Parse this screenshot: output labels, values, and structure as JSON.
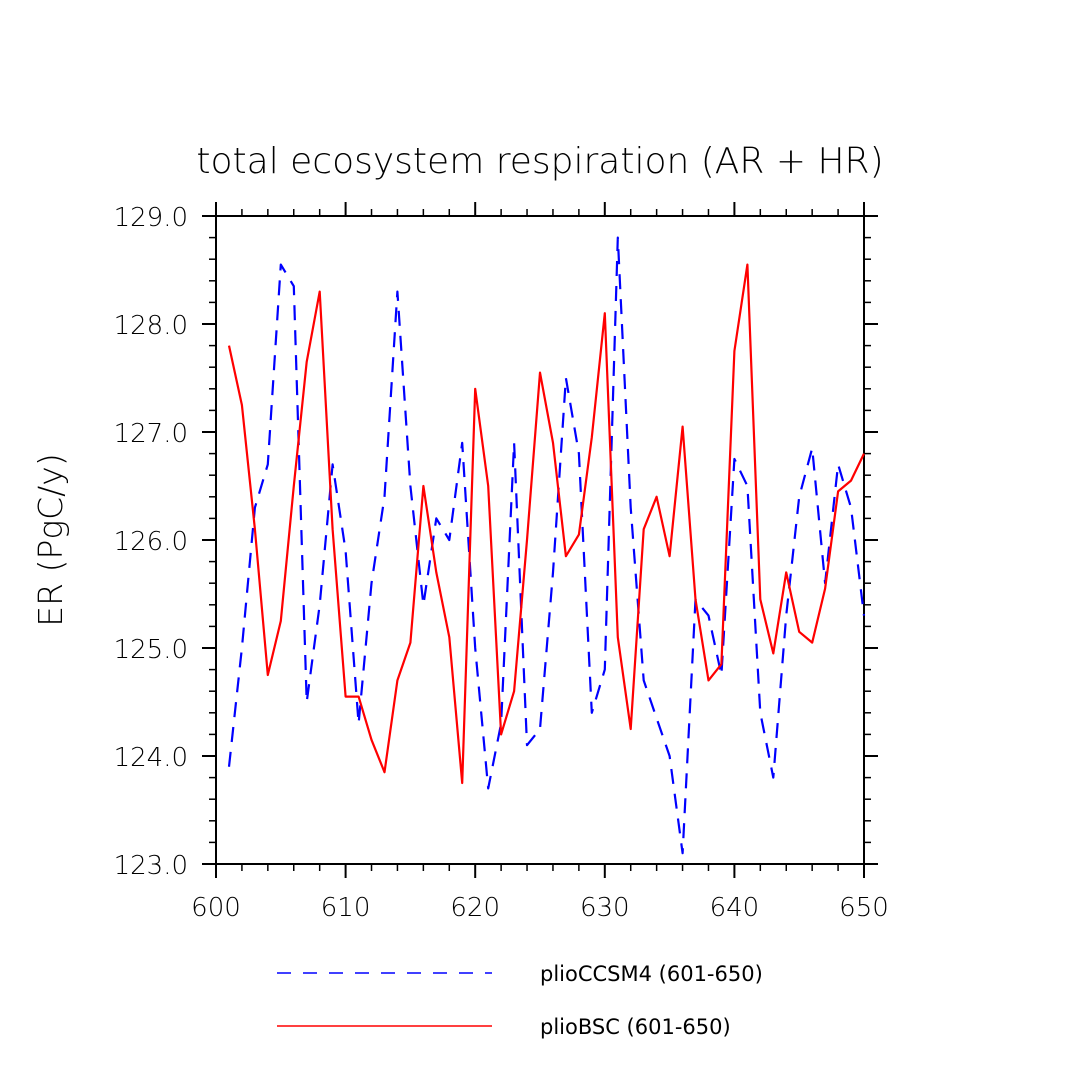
{
  "chart_data": {
    "type": "line",
    "title": "total ecosystem respiration (AR + HR)",
    "xlabel": "",
    "ylabel": "ER  (PgC/y)",
    "xlim": [
      600,
      650
    ],
    "ylim": [
      123.0,
      129.0
    ],
    "x_ticks": [
      600,
      610,
      620,
      630,
      640,
      650
    ],
    "x_tick_labels": [
      "600",
      "610",
      "620",
      "630",
      "640",
      "650"
    ],
    "y_ticks": [
      123.0,
      124.0,
      125.0,
      126.0,
      127.0,
      128.0,
      129.0
    ],
    "y_tick_labels": [
      "123.0",
      "124.0",
      "125.0",
      "126.0",
      "127.0",
      "128.0",
      "129.0"
    ],
    "grid": false,
    "legend_position": "bottom",
    "x": [
      601,
      602,
      603,
      604,
      605,
      606,
      607,
      608,
      609,
      610,
      611,
      612,
      613,
      614,
      615,
      616,
      617,
      618,
      619,
      620,
      621,
      622,
      623,
      624,
      625,
      626,
      627,
      628,
      629,
      630,
      631,
      632,
      633,
      634,
      635,
      636,
      637,
      638,
      639,
      640,
      641,
      642,
      643,
      644,
      645,
      646,
      647,
      648,
      649,
      650
    ],
    "series": [
      {
        "name": "plioCCSM4 (601-650)",
        "color": "#0000ff",
        "style": "dashed",
        "values": [
          123.9,
          125.0,
          126.3,
          126.7,
          128.55,
          128.35,
          124.5,
          125.4,
          126.7,
          125.9,
          124.3,
          125.6,
          126.4,
          128.3,
          126.5,
          125.4,
          126.2,
          126.0,
          126.9,
          125.0,
          123.7,
          124.3,
          126.9,
          124.1,
          124.25,
          125.7,
          127.5,
          126.8,
          124.4,
          124.8,
          128.8,
          126.3,
          124.7,
          124.35,
          124.0,
          123.1,
          125.45,
          125.3,
          124.75,
          126.75,
          126.5,
          124.4,
          123.8,
          125.3,
          126.4,
          126.85,
          125.6,
          126.7,
          126.3,
          125.3
        ]
      },
      {
        "name": "plioBSC (601-650)",
        "color": "#ff0000",
        "style": "solid",
        "values": [
          127.8,
          127.25,
          126.1,
          124.75,
          125.25,
          126.5,
          127.65,
          128.3,
          126.1,
          124.55,
          124.55,
          124.15,
          123.85,
          124.7,
          125.05,
          126.5,
          125.7,
          125.1,
          123.75,
          127.4,
          126.5,
          124.2,
          124.6,
          126.0,
          127.55,
          126.9,
          125.85,
          126.05,
          126.95,
          128.1,
          125.1,
          124.25,
          126.1,
          126.4,
          125.85,
          127.05,
          125.45,
          124.7,
          124.85,
          127.75,
          128.55,
          125.45,
          124.95,
          125.7,
          125.15,
          125.05,
          125.55,
          126.45,
          126.55,
          126.8
        ]
      }
    ]
  }
}
